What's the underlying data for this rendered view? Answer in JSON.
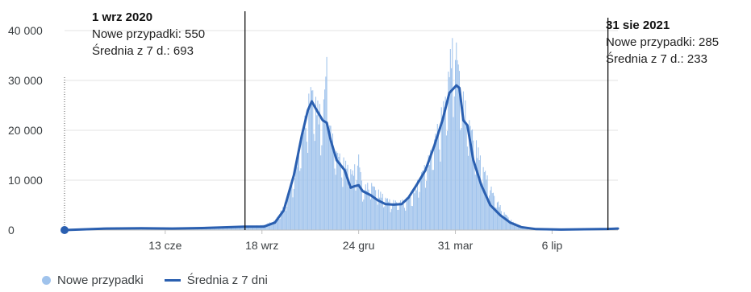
{
  "chart_data": {
    "type": "bar",
    "title": "",
    "xlabel": "",
    "ylabel": "",
    "ylim": [
      0,
      40000
    ],
    "yticks": [
      "0",
      "10 000",
      "20 000",
      "30 000",
      "40 000"
    ],
    "yticks_values": [
      0,
      10000,
      20000,
      30000,
      40000
    ],
    "x_range": [
      "2020-03-04",
      "2021-09-10"
    ],
    "x_tick_labels": [
      {
        "date": "2020-06-13",
        "label": "13 cze"
      },
      {
        "date": "2020-09-18",
        "label": "18 wrz"
      },
      {
        "date": "2020-12-24",
        "label": "24 gru"
      },
      {
        "date": "2021-03-31",
        "label": "31 mar"
      },
      {
        "date": "2021-07-06",
        "label": "6 lip"
      }
    ],
    "grid": "horizontal",
    "legend_position": "bottom-left",
    "series": [
      {
        "name": "Nowe przypadki",
        "type": "bar",
        "color": "#a0c3ec",
        "points": [
          [
            "2020-03-04",
            0
          ],
          [
            "2020-04-15",
            350
          ],
          [
            "2020-05-20",
            400
          ],
          [
            "2020-06-20",
            350
          ],
          [
            "2020-07-20",
            450
          ],
          [
            "2020-08-15",
            700
          ],
          [
            "2020-09-01",
            550
          ],
          [
            "2020-09-20",
            1000
          ],
          [
            "2020-10-01",
            1800
          ],
          [
            "2020-10-10",
            4500
          ],
          [
            "2020-10-18",
            9000
          ],
          [
            "2020-10-25",
            15000
          ],
          [
            "2020-10-31",
            21000
          ],
          [
            "2020-11-04",
            25000
          ],
          [
            "2020-11-07",
            27500
          ],
          [
            "2020-11-12",
            24000
          ],
          [
            "2020-11-18",
            22000
          ],
          [
            "2020-11-22",
            32500
          ],
          [
            "2020-11-26",
            19000
          ],
          [
            "2020-12-02",
            15000
          ],
          [
            "2020-12-10",
            13000
          ],
          [
            "2020-12-18",
            11000
          ],
          [
            "2020-12-24",
            14000
          ],
          [
            "2020-12-28",
            8000
          ],
          [
            "2021-01-05",
            9000
          ],
          [
            "2021-01-15",
            7000
          ],
          [
            "2021-01-25",
            5500
          ],
          [
            "2021-02-05",
            5500
          ],
          [
            "2021-02-15",
            6500
          ],
          [
            "2021-02-25",
            11000
          ],
          [
            "2021-03-05",
            14000
          ],
          [
            "2021-03-15",
            21000
          ],
          [
            "2021-03-22",
            26000
          ],
          [
            "2021-03-27",
            35000
          ],
          [
            "2021-04-01",
            35000
          ],
          [
            "2021-04-06",
            27000
          ],
          [
            "2021-04-12",
            22000
          ],
          [
            "2021-04-20",
            17000
          ],
          [
            "2021-04-28",
            12000
          ],
          [
            "2021-05-08",
            7000
          ],
          [
            "2021-05-18",
            3500
          ],
          [
            "2021-05-28",
            1500
          ],
          [
            "2021-06-10",
            300
          ],
          [
            "2021-07-01",
            100
          ],
          [
            "2021-08-15",
            150
          ],
          [
            "2021-08-31",
            285
          ]
        ]
      },
      {
        "name": "Średnia z 7 dni",
        "type": "line",
        "color": "#2a5fb0",
        "points": [
          [
            "2020-03-04",
            0
          ],
          [
            "2020-04-15",
            300
          ],
          [
            "2020-05-20",
            350
          ],
          [
            "2020-06-20",
            300
          ],
          [
            "2020-07-20",
            400
          ],
          [
            "2020-08-20",
            600
          ],
          [
            "2020-09-01",
            693
          ],
          [
            "2020-09-20",
            700
          ],
          [
            "2020-10-01",
            1500
          ],
          [
            "2020-10-10",
            4000
          ],
          [
            "2020-10-20",
            11000
          ],
          [
            "2020-10-28",
            19000
          ],
          [
            "2020-11-03",
            24000
          ],
          [
            "2020-11-07",
            25800
          ],
          [
            "2020-11-12",
            24000
          ],
          [
            "2020-11-18",
            22000
          ],
          [
            "2020-11-22",
            21500
          ],
          [
            "2020-11-26",
            18000
          ],
          [
            "2020-12-02",
            14000
          ],
          [
            "2020-12-10",
            12000
          ],
          [
            "2020-12-16",
            8500
          ],
          [
            "2020-12-20",
            8800
          ],
          [
            "2020-12-24",
            9000
          ],
          [
            "2020-12-28",
            7800
          ],
          [
            "2021-01-05",
            7000
          ],
          [
            "2021-01-12",
            6000
          ],
          [
            "2021-01-20",
            5200
          ],
          [
            "2021-01-28",
            5100
          ],
          [
            "2021-02-05",
            5200
          ],
          [
            "2021-02-12",
            6500
          ],
          [
            "2021-02-20",
            9000
          ],
          [
            "2021-03-01",
            12000
          ],
          [
            "2021-03-10",
            17000
          ],
          [
            "2021-03-18",
            22000
          ],
          [
            "2021-03-25",
            27500
          ],
          [
            "2021-04-01",
            29000
          ],
          [
            "2021-04-04",
            28500
          ],
          [
            "2021-04-08",
            22000
          ],
          [
            "2021-04-12",
            21000
          ],
          [
            "2021-04-18",
            14000
          ],
          [
            "2021-04-26",
            9000
          ],
          [
            "2021-05-05",
            5000
          ],
          [
            "2021-05-15",
            3000
          ],
          [
            "2021-05-25",
            1500
          ],
          [
            "2021-06-05",
            600
          ],
          [
            "2021-06-20",
            200
          ],
          [
            "2021-07-15",
            100
          ],
          [
            "2021-08-31",
            233
          ],
          [
            "2021-09-10",
            300
          ]
        ]
      }
    ],
    "annotations": [
      {
        "date": "2020-09-01",
        "title": "1 wrz 2020",
        "lines": [
          "Nowe przypadki: 550",
          "Średnia z 7 d.: 693"
        ]
      },
      {
        "date": "2021-08-31",
        "title": "31 sie 2021",
        "lines": [
          "Nowe przypadki: 285",
          "Średnia z 7 d.: 233"
        ]
      }
    ]
  },
  "legend": {
    "cases": "Nowe przypadki",
    "average": "Średnia z 7 dni"
  }
}
